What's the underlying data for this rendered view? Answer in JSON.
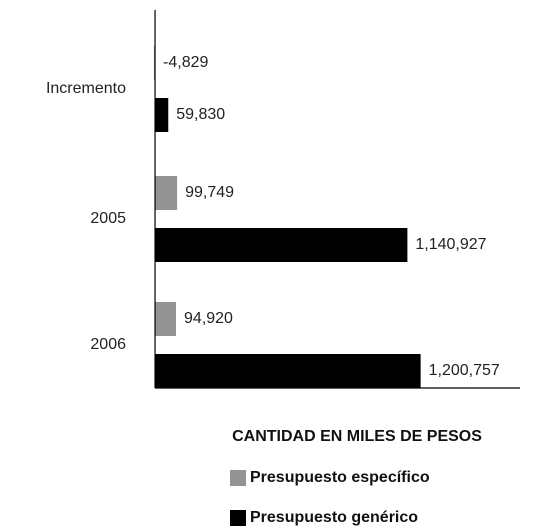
{
  "chart_data": {
    "type": "bar",
    "orientation": "horizontal",
    "x_label": "CANTIDAD EN MILES DE PESOS",
    "categories": [
      "Incremento",
      "2005",
      "2006"
    ],
    "series": [
      {
        "name": "Presupuesto específico",
        "color": "#939393",
        "values": [
          -4829,
          99749,
          94920
        ],
        "value_labels": [
          "-4,829",
          "99,749",
          "94,920"
        ]
      },
      {
        "name": "Presupuesto genérico",
        "color": "#000000",
        "values": [
          59830,
          1140927,
          1200757
        ],
        "value_labels": [
          "59,830",
          "1,140,927",
          "1,200,757"
        ]
      }
    ],
    "xlim": [
      -25000,
      1650000
    ],
    "grid": false
  }
}
